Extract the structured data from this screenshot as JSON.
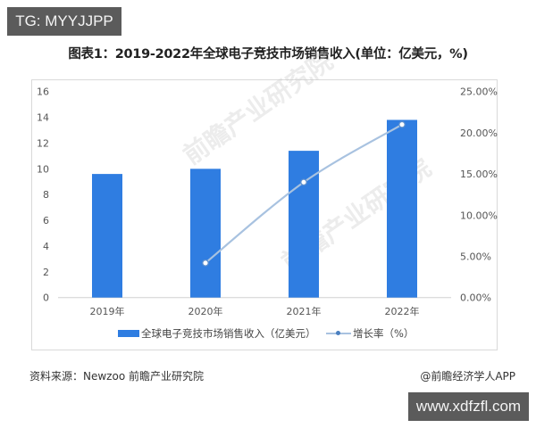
{
  "badges": {
    "top_left": "TG: MYYJJPP",
    "bottom_right": "www.xdfzfl.com"
  },
  "title": "图表1：2019-2022年全球电子竞技市场销售收入(单位：亿美元，%)",
  "legend": {
    "bar_label": "全球电子竞技市场销售收入（亿美元）",
    "line_label": "增长率（%）"
  },
  "footer": {
    "source": "资料来源：Newzoo 前瞻产业研究院",
    "credit": "@前瞻经济学人APP"
  },
  "watermark": "前瞻产业研究院",
  "colors": {
    "bar": "#2f7de1",
    "line": "#a8c2e0",
    "marker_stroke": "#5b8fcf",
    "axis_text": "#555555",
    "baseline": "#d0d0d0"
  },
  "chart_data": {
    "type": "bar",
    "title": "图表1：2019-2022年全球电子竞技市场销售收入(单位：亿美元，%)",
    "categories": [
      "2019年",
      "2020年",
      "2021年",
      "2022年"
    ],
    "series": [
      {
        "name": "全球电子竞技市场销售收入（亿美元）",
        "type": "bar",
        "axis": "left",
        "values": [
          9.6,
          10.0,
          11.4,
          13.8
        ]
      },
      {
        "name": "增长率（%）",
        "type": "line",
        "axis": "right",
        "values": [
          null,
          4.2,
          14.0,
          21.0
        ]
      }
    ],
    "xlabel": "",
    "ylabel": "",
    "ylim": [
      0,
      16
    ],
    "yticks": [
      "0",
      "2",
      "4",
      "6",
      "8",
      "10",
      "12",
      "14",
      "16"
    ],
    "y2lim": [
      0,
      25
    ],
    "y2ticks": [
      "0.00%",
      "5.00%",
      "10.00%",
      "15.00%",
      "20.00%",
      "25.00%"
    ],
    "grid": false,
    "legend_position": "bottom"
  }
}
